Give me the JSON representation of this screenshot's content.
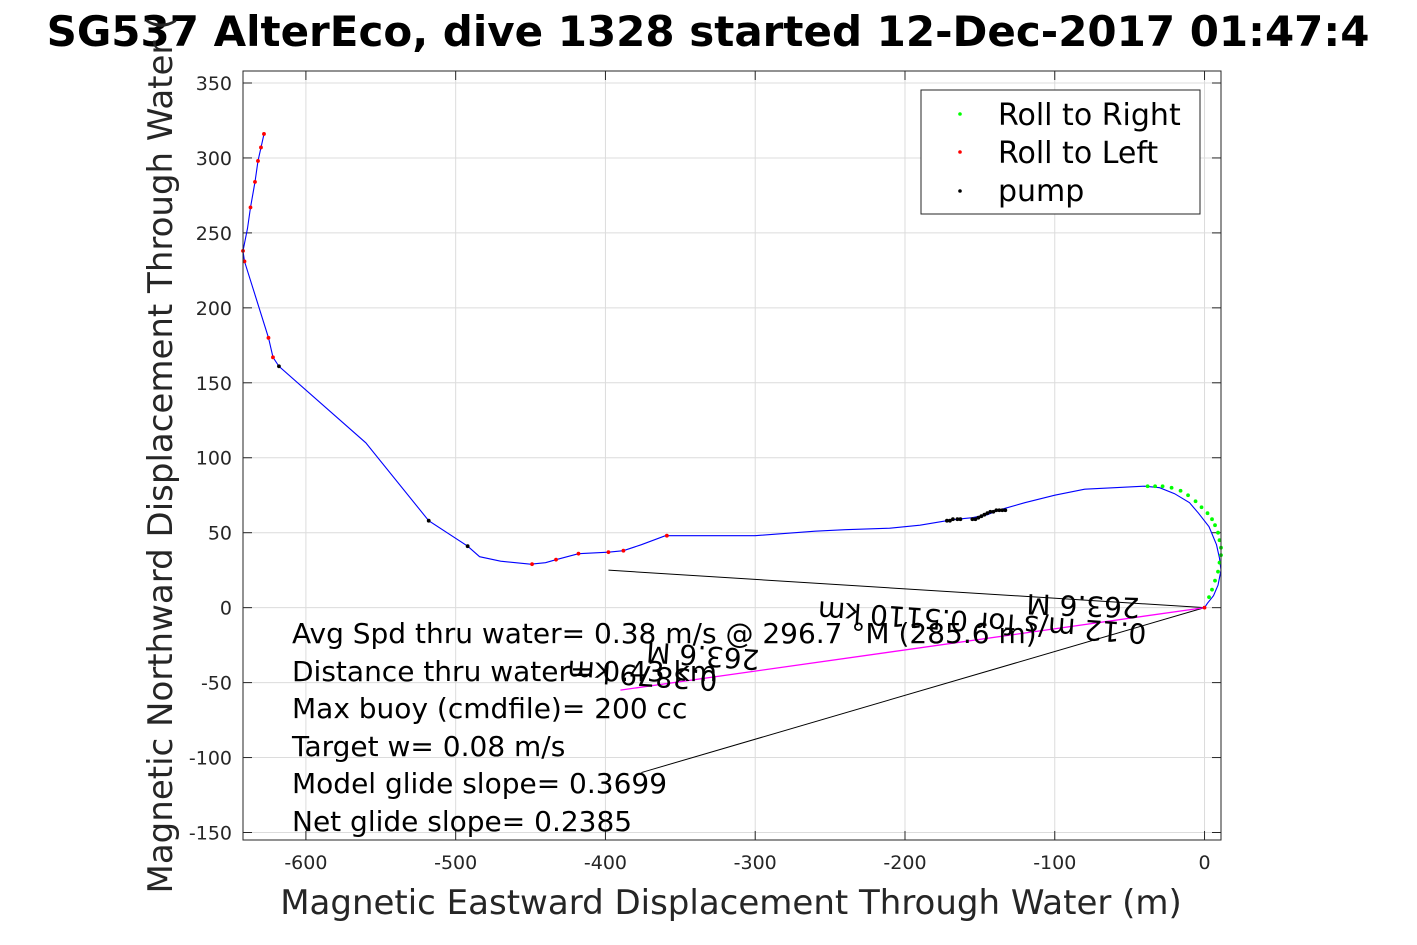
{
  "chart_data": {
    "type": "line",
    "title": "SG537 AlterEco, dive 1328 started 12-Dec-2017 01:47:4",
    "xlabel": "Magnetic Eastward Displacement Through Water (m)",
    "ylabel": "Magnetic Northward Displacement Through Water (",
    "xlim": [
      -642,
      11
    ],
    "ylim": [
      -155,
      358
    ],
    "grid": true,
    "x_ticks": [
      -600,
      -500,
      -400,
      -300,
      -200,
      -100,
      0
    ],
    "y_ticks": [
      -150,
      -100,
      -50,
      0,
      50,
      100,
      150,
      200,
      250,
      300,
      350
    ],
    "x_tick_labels": [
      "-600",
      "-500",
      "-400",
      "-300",
      "-200",
      "-100",
      "0"
    ],
    "y_tick_labels": [
      "-150",
      "-100",
      "-50",
      "0",
      "50",
      "100",
      "150",
      "200",
      "250",
      "300",
      "350"
    ],
    "legend_position": "top-right",
    "colors": {
      "track": "#0000ff",
      "roll_right": "#00ff00",
      "roll_left": "#ff0000",
      "pump": "#000000",
      "vector": "#000000",
      "net": "#ff00ff"
    },
    "track": {
      "x": [
        -628,
        -630,
        -632,
        -634,
        -637,
        -639,
        -642,
        -641,
        -625,
        -622,
        -618,
        -560,
        -518,
        -492,
        -484,
        -470,
        -450,
        -440,
        -433,
        -418,
        -398,
        -388,
        -376,
        -360,
        -340,
        -300,
        -260,
        -240,
        -210,
        -190,
        -172,
        -165,
        -155,
        -150,
        -145,
        -140,
        -134,
        -120,
        -100,
        -80,
        -60,
        -40,
        -30,
        -20,
        -10,
        -4,
        3,
        8,
        10,
        11,
        9,
        6,
        2,
        0
      ],
      "y": [
        316,
        307,
        298,
        284,
        267,
        253,
        238,
        231,
        180,
        167,
        161,
        110,
        58,
        41,
        34,
        31,
        29,
        30,
        32,
        36,
        37,
        38,
        42,
        48,
        48,
        48,
        51,
        52,
        53,
        55,
        58,
        59,
        60,
        61,
        62,
        64,
        66,
        70,
        75,
        79,
        80,
        81,
        80,
        76,
        70,
        63,
        54,
        42,
        33,
        25,
        15,
        8,
        3,
        0
      ]
    },
    "roll_right": {
      "x": [
        -38,
        -33,
        -28,
        -22,
        -16,
        -11,
        -6,
        -2,
        2,
        5,
        7,
        9,
        10,
        11,
        11,
        10,
        9,
        7,
        5,
        3
      ],
      "y": [
        81,
        81,
        81,
        80,
        78,
        75,
        71,
        67,
        63,
        59,
        55,
        50,
        45,
        40,
        35,
        30,
        24,
        18,
        12,
        7
      ]
    },
    "roll_left": {
      "x": [
        -628,
        -630,
        -632,
        -634,
        -637,
        -642,
        -641,
        -625,
        -622,
        -449,
        -433,
        -418,
        -398,
        -388,
        -359,
        0
      ],
      "y": [
        316,
        307,
        298,
        284,
        267,
        238,
        231,
        180,
        167,
        29,
        32,
        36,
        37,
        38,
        48,
        0
      ]
    },
    "pump": {
      "x": [
        -618,
        -518,
        -492,
        -172,
        -170,
        -168,
        -165,
        -163,
        -155,
        -153,
        -151,
        -149,
        -147,
        -145,
        -143,
        -141,
        -139,
        -137,
        -135,
        -133
      ],
      "y": [
        161,
        58,
        41,
        58,
        58,
        59,
        59,
        59,
        59,
        59,
        60,
        61,
        62,
        63,
        64,
        64,
        65,
        65,
        65,
        65
      ]
    },
    "vectors": [
      {
        "from": [
          -398,
          25
        ],
        "to": [
          0,
          0
        ]
      },
      {
        "from": [
          -376,
          -110
        ],
        "to": [
          0,
          0
        ]
      }
    ],
    "net_line": {
      "from": [
        -390,
        -55
      ],
      "to": [
        0,
        0
      ]
    }
  },
  "legend": [
    {
      "label": "Roll to Right",
      "marker": "dot",
      "color": "#00ff00"
    },
    {
      "label": "Roll to Left",
      "marker": "dot",
      "color": "#ff0000"
    },
    {
      "label": "pump",
      "marker": "dot",
      "color": "#000000"
    }
  ],
  "annotations": {
    "avg_spd": "Avg Spd thru water=  0.38 m/s @ 296.7 °M (285.6 m)",
    "distance": "Distance thru water= 0.43 km",
    "max_buoy": "Max buoy (cmdfile)= 200 cc",
    "target_w": "Target w= 0.08 m/s",
    "model_glide": "Model glide slope= 0.3699",
    "net_glide": "Net glide slope= 0.2385"
  },
  "rotated_labels": {
    "label_1": "263.6 M",
    "label_2": "0.12 m/s for 0.5110 km",
    "label_3": "263.6 M",
    "label_4": "0.3879 km"
  }
}
